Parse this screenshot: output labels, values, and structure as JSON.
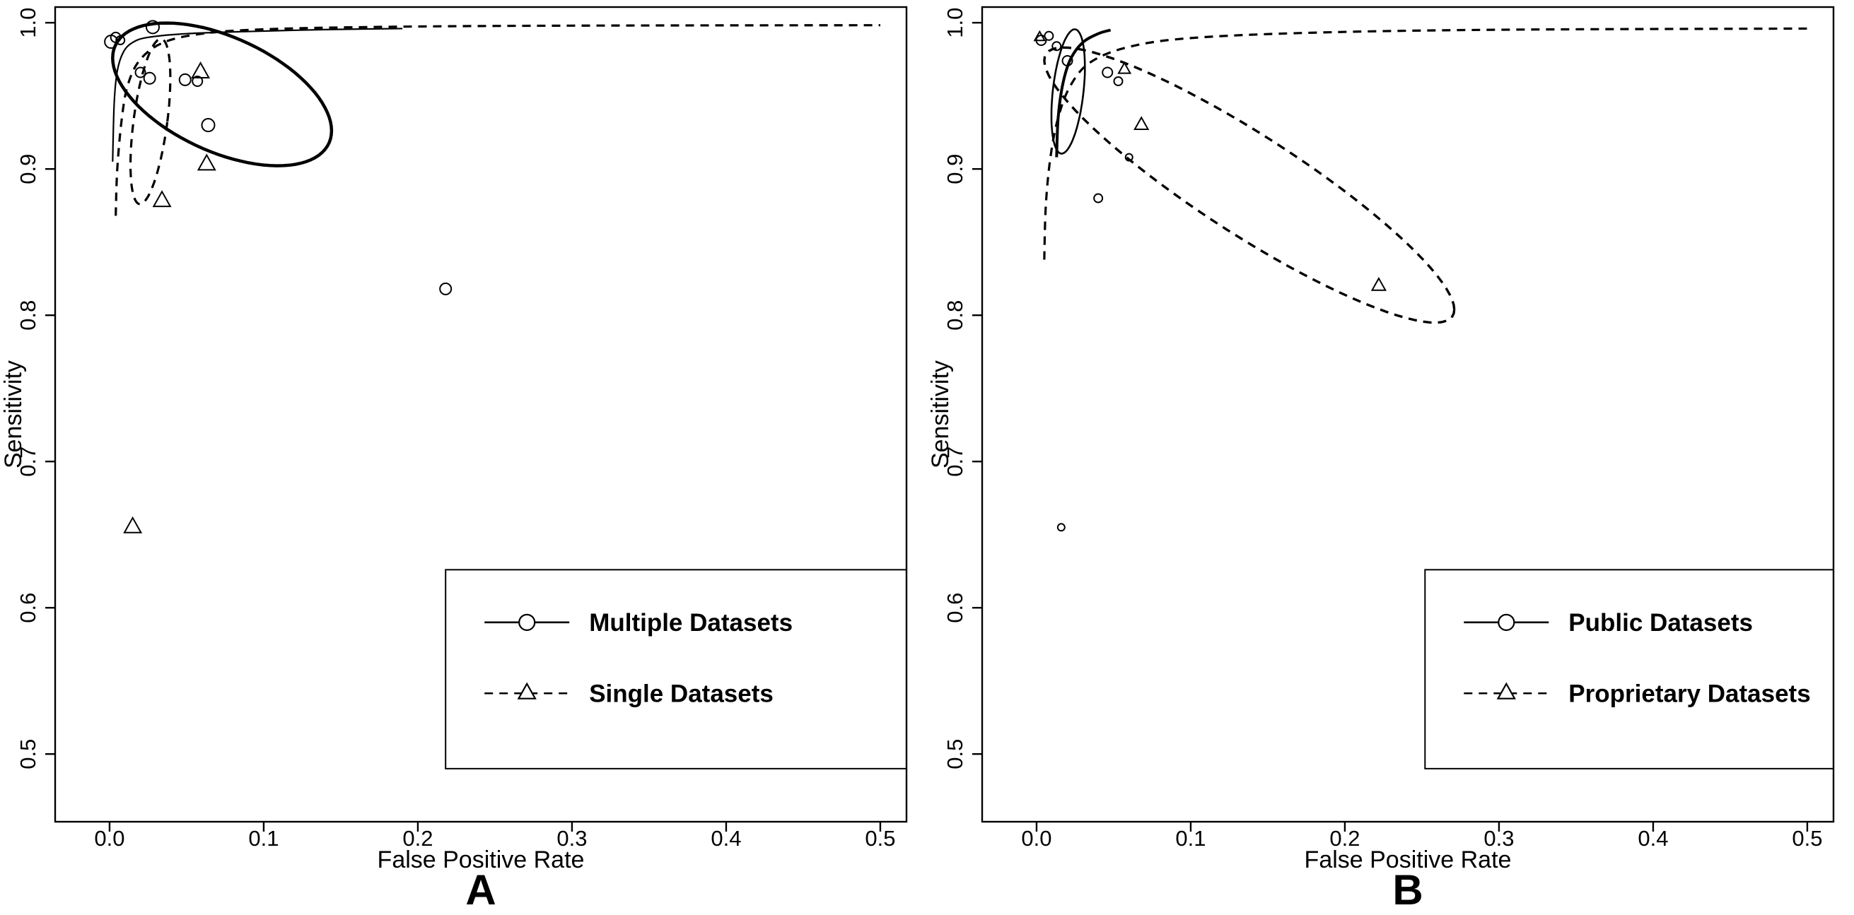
{
  "figure": {
    "background": "#ffffff",
    "ink_color": "#000000"
  },
  "chart_data": [
    {
      "panel_label": "A",
      "type": "scatter",
      "title": "",
      "xlabel": "False Positive Rate",
      "ylabel": "Sensitivity",
      "xlim": [
        -0.0353,
        0.517
      ],
      "ylim": [
        0.4537,
        1.0107
      ],
      "xticks": [
        0,
        0.1,
        0.2,
        0.3,
        0.4,
        0.5
      ],
      "xtick_labels": [
        "0.0",
        "0.1",
        "0.2",
        "0.3",
        "0.4",
        "0.5"
      ],
      "yticks": [
        0.5,
        0.6,
        0.7,
        0.8,
        0.9,
        1.0
      ],
      "ytick_labels": [
        "0.5",
        "0.6",
        "0.7",
        "0.8",
        "0.9",
        "1.0"
      ],
      "grid": false,
      "series": [
        {
          "name": "Multiple Datasets",
          "marker": "circle",
          "points": [
            [
              0.001,
              0.987,
              9
            ],
            [
              0.004,
              0.99,
              7
            ],
            [
              0.007,
              0.988,
              6
            ],
            [
              0.028,
              0.997,
              9
            ],
            [
              0.02,
              0.966,
              7
            ],
            [
              0.026,
              0.962,
              8
            ],
            [
              0.049,
              0.961,
              8
            ],
            [
              0.057,
              0.96,
              7
            ],
            [
              0.064,
              0.93,
              9
            ],
            [
              0.218,
              0.818,
              8
            ]
          ]
        },
        {
          "name": "Single Datasets",
          "marker": "triangle",
          "points": [
            [
              0.059,
              0.966,
              10
            ],
            [
              0.063,
              0.903,
              10
            ],
            [
              0.034,
              0.878,
              10
            ],
            [
              0.015,
              0.655,
              10
            ]
          ]
        }
      ],
      "curves": [
        {
          "name": "sroc-curve-multiple",
          "style": "solid",
          "width": 2.2,
          "points": [
            [
              0.002,
              0.905
            ],
            [
              0.003,
              0.945
            ],
            [
              0.005,
              0.967
            ],
            [
              0.009,
              0.98
            ],
            [
              0.015,
              0.9865
            ],
            [
              0.025,
              0.99
            ],
            [
              0.05,
              0.9925
            ],
            [
              0.09,
              0.994
            ],
            [
              0.14,
              0.9953
            ],
            [
              0.19,
              0.996
            ]
          ]
        },
        {
          "name": "sroc-curve-single",
          "style": "dashed",
          "width": 3.2,
          "points": [
            [
              0.004,
              0.868
            ],
            [
              0.005,
              0.9
            ],
            [
              0.008,
              0.935
            ],
            [
              0.012,
              0.958
            ],
            [
              0.02,
              0.975
            ],
            [
              0.035,
              0.9865
            ],
            [
              0.06,
              0.9925
            ],
            [
              0.1,
              0.9955
            ],
            [
              0.18,
              0.9972
            ],
            [
              0.3,
              0.998
            ],
            [
              0.5,
              0.9983
            ]
          ]
        }
      ],
      "ellipses": [
        {
          "name": "confidence-ellipse-multiple",
          "style": "solid",
          "width": 4.5,
          "cx": 0.073,
          "cy": 0.951,
          "a": 0.071,
          "b": 0.042,
          "shx": 0,
          "shy": -0.35
        },
        {
          "name": "confidence-ellipse-single",
          "style": "dashed",
          "width": 3.2,
          "cx": 0.0265,
          "cy": 0.9325,
          "a": 0.011,
          "b": 0.0565,
          "shx": 0.12,
          "shy": 0
        }
      ],
      "legend": {
        "x0": 0.218,
        "y_top": 0.626,
        "y_bottom": 0.49,
        "entry_y": [
          0.59,
          0.5415
        ],
        "entries": [
          {
            "label": "Multiple Datasets",
            "style": "solid",
            "marker": "circle"
          },
          {
            "label": "Single Datasets",
            "style": "dashed",
            "marker": "triangle"
          }
        ]
      }
    },
    {
      "panel_label": "B",
      "type": "scatter",
      "title": "",
      "xlabel": "False Positive Rate",
      "ylabel": "Sensitivity",
      "xlim": [
        -0.0353,
        0.517
      ],
      "ylim": [
        0.4537,
        1.0107
      ],
      "xticks": [
        0,
        0.1,
        0.2,
        0.3,
        0.4,
        0.5
      ],
      "xtick_labels": [
        "0.0",
        "0.1",
        "0.2",
        "0.3",
        "0.4",
        "0.5"
      ],
      "yticks": [
        0.5,
        0.6,
        0.7,
        0.8,
        0.9,
        1.0
      ],
      "ytick_labels": [
        "0.5",
        "0.6",
        "0.7",
        "0.8",
        "0.9",
        "1.0"
      ],
      "grid": false,
      "series": [
        {
          "name": "Public Datasets",
          "marker": "circle",
          "points": [
            [
              0.003,
              0.988,
              7
            ],
            [
              0.008,
              0.991,
              6
            ],
            [
              0.013,
              0.984,
              6
            ],
            [
              0.02,
              0.974,
              7
            ],
            [
              0.046,
              0.966,
              7
            ],
            [
              0.053,
              0.96,
              6
            ],
            [
              0.06,
              0.908,
              5
            ],
            [
              0.04,
              0.88,
              6
            ],
            [
              0.016,
              0.655,
              5
            ]
          ]
        },
        {
          "name": "Proprietary Datasets",
          "marker": "triangle",
          "points": [
            [
              0.002,
              0.99,
              6
            ],
            [
              0.057,
              0.968,
              7
            ],
            [
              0.068,
              0.93,
              8
            ],
            [
              0.222,
              0.82,
              8
            ]
          ]
        }
      ],
      "curves": [
        {
          "name": "sroc-curve-public",
          "style": "solid",
          "width": 4,
          "points": [
            [
              0.013,
              0.908
            ],
            [
              0.014,
              0.935
            ],
            [
              0.017,
              0.958
            ],
            [
              0.022,
              0.975
            ],
            [
              0.03,
              0.9865
            ],
            [
              0.04,
              0.9925
            ],
            [
              0.048,
              0.995
            ]
          ]
        },
        {
          "name": "sroc-curve-proprietary",
          "style": "dashed",
          "width": 3.2,
          "points": [
            [
              0.005,
              0.838
            ],
            [
              0.006,
              0.875
            ],
            [
              0.009,
              0.908
            ],
            [
              0.014,
              0.935
            ],
            [
              0.022,
              0.957
            ],
            [
              0.035,
              0.973
            ],
            [
              0.06,
              0.9835
            ],
            [
              0.1,
              0.9895
            ],
            [
              0.18,
              0.9932
            ],
            [
              0.3,
              0.9952
            ],
            [
              0.5,
              0.996
            ]
          ]
        }
      ],
      "ellipses": [
        {
          "name": "confidence-ellipse-public",
          "style": "solid",
          "width": 2.6,
          "cx": 0.0205,
          "cy": 0.953,
          "a": 0.01,
          "b": 0.0425,
          "shx": 0.1,
          "shy": 0
        },
        {
          "name": "confidence-ellipse-proprietary",
          "style": "dashed",
          "width": 3.4,
          "cx": 0.138,
          "cy": 0.889,
          "a": 0.133,
          "b": 0.04,
          "shx": 0,
          "shy": -0.64
        }
      ],
      "legend": {
        "x0": 0.252,
        "y_top": 0.626,
        "y_bottom": 0.49,
        "entry_y": [
          0.59,
          0.5415
        ],
        "entries": [
          {
            "label": "Public Datasets",
            "style": "solid",
            "marker": "circle"
          },
          {
            "label": "Proprietary Datasets",
            "style": "dashed",
            "marker": "triangle"
          }
        ]
      }
    }
  ]
}
